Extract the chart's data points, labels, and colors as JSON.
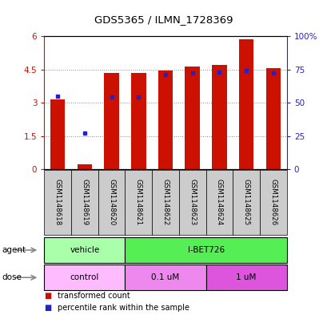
{
  "title": "GDS5365 / ILMN_1728369",
  "samples": [
    "GSM1148618",
    "GSM1148619",
    "GSM1148620",
    "GSM1148621",
    "GSM1148622",
    "GSM1148623",
    "GSM1148624",
    "GSM1148625",
    "GSM1148626"
  ],
  "bar_values": [
    3.15,
    0.22,
    4.35,
    4.35,
    4.45,
    4.62,
    4.72,
    5.88,
    4.57
  ],
  "percentile_values": [
    3.3,
    1.65,
    3.28,
    3.28,
    4.28,
    4.35,
    4.4,
    4.47,
    4.35
  ],
  "ylim_left": [
    0,
    6
  ],
  "ylim_right": [
    0,
    100
  ],
  "yticks_left": [
    0,
    1.5,
    3.0,
    4.5,
    6.0
  ],
  "ytick_labels_left": [
    "0",
    "1.5",
    "3",
    "4.5",
    "6"
  ],
  "yticks_right": [
    0,
    25,
    50,
    75,
    100
  ],
  "ytick_labels_right": [
    "0",
    "25",
    "50",
    "75",
    "100%"
  ],
  "bar_color": "#cc1100",
  "percentile_color": "#2222cc",
  "grid_color": "#888888",
  "agent_row": [
    {
      "label": "vehicle",
      "start": 0,
      "end": 3,
      "color": "#aaffaa"
    },
    {
      "label": "I-BET726",
      "start": 3,
      "end": 9,
      "color": "#55ee55"
    }
  ],
  "dose_row": [
    {
      "label": "control",
      "start": 0,
      "end": 3,
      "color": "#ffbbff"
    },
    {
      "label": "0.1 uM",
      "start": 3,
      "end": 6,
      "color": "#ee88ee"
    },
    {
      "label": "1 uM",
      "start": 6,
      "end": 9,
      "color": "#dd55dd"
    }
  ],
  "agent_label": "agent",
  "dose_label": "dose",
  "legend_bar_label": "transformed count",
  "legend_pct_label": "percentile rank within the sample",
  "bar_width": 0.55,
  "tick_label_color_left": "#cc1100",
  "tick_label_color_right": "#2222cc",
  "bg_color": "#ffffff",
  "sample_box_color": "#cccccc"
}
